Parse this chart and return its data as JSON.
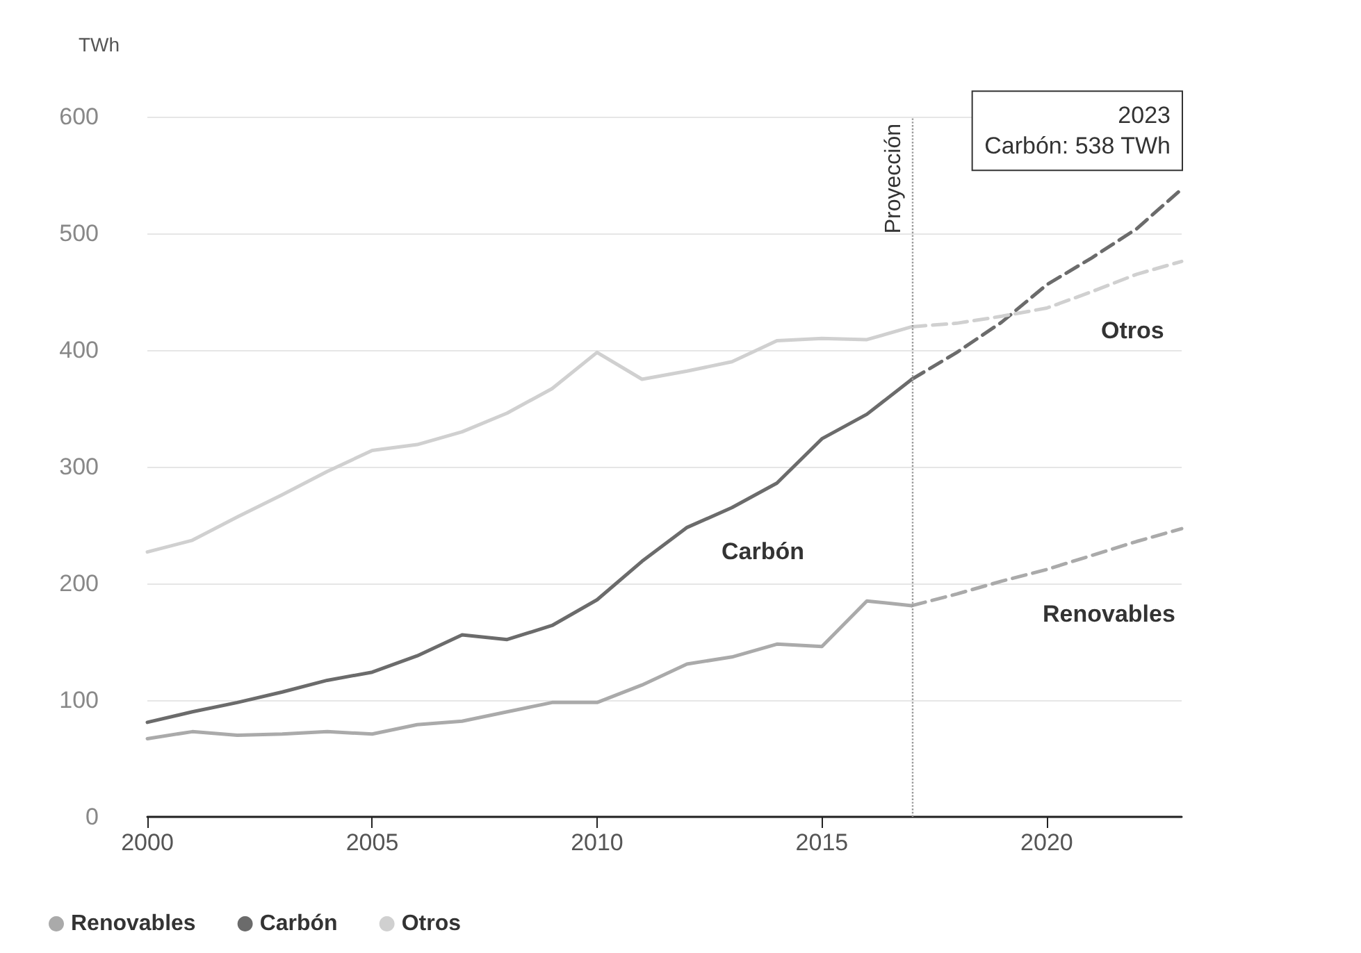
{
  "chart_data": {
    "type": "line",
    "ylabel": "TWh",
    "xlim": [
      2000,
      2023
    ],
    "xticks": [
      2000,
      2005,
      2010,
      2015,
      2020
    ],
    "ylim": [
      0,
      600
    ],
    "yticks": [
      0,
      100,
      200,
      300,
      400,
      500,
      600
    ],
    "grid": "y",
    "legend": "bottom left",
    "marker": "none",
    "line_style": "solid",
    "series": [
      {
        "name": "Renovables",
        "color": "#aaaaaa",
        "x": [
          2000,
          2001,
          2002,
          2003,
          2004,
          2005,
          2006,
          2007,
          2008,
          2009,
          2010,
          2011,
          2012,
          2013,
          2014,
          2015,
          2016,
          2017
        ],
        "values": [
          67,
          73,
          70,
          71,
          73,
          71,
          79,
          82,
          90,
          98,
          98,
          113,
          131,
          137,
          148,
          146,
          185,
          181
        ]
      },
      {
        "name": "Carbón",
        "color": "#6b6b6b",
        "x": [
          2000,
          2001,
          2002,
          2003,
          2004,
          2005,
          2006,
          2007,
          2008,
          2009,
          2010,
          2011,
          2012,
          2013,
          2014,
          2015,
          2016,
          2017
        ],
        "values": [
          81,
          90,
          98,
          107,
          117,
          124,
          138,
          156,
          152,
          164,
          186,
          219,
          248,
          265,
          286,
          324,
          345,
          375
        ]
      },
      {
        "name": "Otros",
        "color": "#d0d0d0",
        "x": [
          2000,
          2001,
          2002,
          2003,
          2004,
          2005,
          2006,
          2007,
          2008,
          2009,
          2010,
          2011,
          2012,
          2013,
          2014,
          2015,
          2016,
          2017
        ],
        "values": [
          227,
          237,
          257,
          276,
          296,
          314,
          319,
          330,
          346,
          367,
          398,
          375,
          382,
          390,
          408,
          410,
          409,
          420
        ]
      },
      {
        "color": "#aaaaaa",
        "line_style": "dashed",
        "x": [
          2017,
          2018,
          2019,
          2020,
          2021,
          2022,
          2023
        ],
        "values": [
          181,
          191,
          202,
          212,
          224,
          236,
          247
        ]
      },
      {
        "color": "#6b6b6b",
        "line_style": "dashed",
        "x": [
          2017,
          2018,
          2019,
          2020,
          2021,
          2022,
          2023
        ],
        "values": [
          375,
          398,
          424,
          456,
          479,
          504,
          538
        ]
      },
      {
        "color": "#d0d0d0",
        "line_style": "dashed",
        "x": [
          2017,
          2018,
          2019,
          2020,
          2021,
          2022,
          2023
        ],
        "values": [
          420,
          423,
          429,
          436,
          450,
          465,
          476
        ]
      }
    ],
    "ref_lines": [
      {
        "axis": "x",
        "value": 2017,
        "label": "Proyección",
        "line_style": "dotted",
        "color": "#999999"
      }
    ],
    "annotations": [
      {
        "text": "2023\nCarbón: 538 TWh",
        "x": 2023,
        "y": 538
      }
    ]
  }
}
